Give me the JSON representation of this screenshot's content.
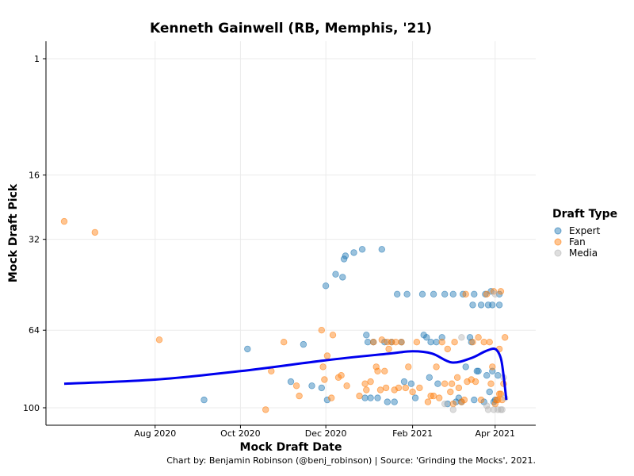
{
  "chart_data": {
    "type": "scatter",
    "title": "Kenneth Gainwell (RB, Memphis, '21)",
    "xlabel": "Mock Draft Date",
    "ylabel": "Mock Draft Pick",
    "caption": "Chart by: Benjamin Robinson (@benj_robinson) | Source: 'Grinding the Mocks', 2021.",
    "x_ticks": [
      "Aug 2020",
      "Oct 2020",
      "Dec 2020",
      "Feb 2021",
      "Apr 2021"
    ],
    "x_tick_dates": [
      "2020-08-01",
      "2020-10-01",
      "2020-12-01",
      "2021-02-01",
      "2021-04-01"
    ],
    "xlim": [
      "2020-05-15",
      "2021-04-30"
    ],
    "y_scale": "sqrt",
    "y_reversed": true,
    "y_ticks": [
      1,
      16,
      32,
      64,
      100
    ],
    "ylim": [
      1,
      105
    ],
    "grid": true,
    "legend": {
      "title": "Draft Type",
      "placement": "right",
      "entries": [
        {
          "name": "Expert",
          "color": "#1f77b4"
        },
        {
          "name": "Fan",
          "color": "#ff7f0e"
        },
        {
          "name": "Media",
          "color": "#b5b5b5"
        }
      ]
    },
    "series": [
      {
        "name": "Expert",
        "color": "#1f77b4",
        "points": [
          [
            "2020-09-05",
            96
          ],
          [
            "2020-10-06",
            72
          ],
          [
            "2020-11-06",
            87
          ],
          [
            "2020-11-15",
            70
          ],
          [
            "2020-11-21",
            89
          ],
          [
            "2020-11-28",
            90
          ],
          [
            "2020-12-01",
            47
          ],
          [
            "2020-12-02",
            96
          ],
          [
            "2020-12-08",
            43
          ],
          [
            "2020-12-13",
            44
          ],
          [
            "2020-12-14",
            38
          ],
          [
            "2020-12-15",
            37
          ],
          [
            "2020-12-21",
            36
          ],
          [
            "2020-12-27",
            35
          ],
          [
            "2020-12-29",
            95
          ],
          [
            "2020-12-30",
            66
          ],
          [
            "2020-12-31",
            69
          ],
          [
            "2021-01-02",
            95
          ],
          [
            "2021-01-04",
            69
          ],
          [
            "2021-01-07",
            95
          ],
          [
            "2021-01-10",
            35
          ],
          [
            "2021-01-12",
            69
          ],
          [
            "2021-01-14",
            97
          ],
          [
            "2021-01-17",
            69
          ],
          [
            "2021-01-19",
            97
          ],
          [
            "2021-01-21",
            50
          ],
          [
            "2021-01-24",
            69
          ],
          [
            "2021-01-26",
            87
          ],
          [
            "2021-01-28",
            50
          ],
          [
            "2021-01-31",
            88
          ],
          [
            "2021-02-03",
            95
          ],
          [
            "2021-02-08",
            50
          ],
          [
            "2021-02-09",
            66
          ],
          [
            "2021-02-11",
            67
          ],
          [
            "2021-02-13",
            85
          ],
          [
            "2021-02-14",
            69
          ],
          [
            "2021-02-16",
            50
          ],
          [
            "2021-02-18",
            69
          ],
          [
            "2021-02-19",
            88
          ],
          [
            "2021-02-22",
            67
          ],
          [
            "2021-02-24",
            50
          ],
          [
            "2021-02-26",
            98
          ],
          [
            "2021-03-02",
            50
          ],
          [
            "2021-03-04",
            97
          ],
          [
            "2021-03-06",
            95
          ],
          [
            "2021-03-08",
            97
          ],
          [
            "2021-03-09",
            50
          ],
          [
            "2021-03-11",
            80
          ],
          [
            "2021-03-14",
            67
          ],
          [
            "2021-03-15",
            69
          ],
          [
            "2021-03-16",
            54
          ],
          [
            "2021-03-17",
            96
          ],
          [
            "2021-03-17",
            50
          ],
          [
            "2021-03-19",
            82
          ],
          [
            "2021-03-20",
            82
          ],
          [
            "2021-03-22",
            54
          ],
          [
            "2021-03-24",
            97
          ],
          [
            "2021-03-25",
            50
          ],
          [
            "2021-03-26",
            84
          ],
          [
            "2021-03-27",
            54
          ],
          [
            "2021-03-28",
            92
          ],
          [
            "2021-03-29",
            49
          ],
          [
            "2021-03-30",
            82
          ],
          [
            "2021-03-30",
            54
          ],
          [
            "2021-03-31",
            97
          ],
          [
            "2021-04-01",
            96
          ],
          [
            "2021-04-03",
            84
          ],
          [
            "2021-04-04",
            54
          ],
          [
            "2021-04-04",
            50
          ]
        ]
      },
      {
        "name": "Fan",
        "color": "#ff7f0e",
        "points": [
          [
            "2020-05-28",
            27
          ],
          [
            "2020-06-19",
            30
          ],
          [
            "2020-08-04",
            68
          ],
          [
            "2020-10-19",
            101
          ],
          [
            "2020-10-23",
            82
          ],
          [
            "2020-11-01",
            69
          ],
          [
            "2020-11-10",
            89
          ],
          [
            "2020-11-12",
            94
          ],
          [
            "2020-11-28",
            64
          ],
          [
            "2020-11-29",
            80
          ],
          [
            "2020-11-30",
            86
          ],
          [
            "2020-12-02",
            75
          ],
          [
            "2020-12-05",
            95
          ],
          [
            "2020-12-06",
            66
          ],
          [
            "2020-12-10",
            85
          ],
          [
            "2020-12-12",
            84
          ],
          [
            "2020-12-16",
            89
          ],
          [
            "2020-12-25",
            94
          ],
          [
            "2020-12-29",
            88
          ],
          [
            "2020-12-30",
            91
          ],
          [
            "2021-01-02",
            87
          ],
          [
            "2021-01-04",
            69
          ],
          [
            "2021-01-06",
            80
          ],
          [
            "2021-01-07",
            82
          ],
          [
            "2021-01-09",
            91
          ],
          [
            "2021-01-10",
            68
          ],
          [
            "2021-01-12",
            82
          ],
          [
            "2021-01-13",
            90
          ],
          [
            "2021-01-14",
            69
          ],
          [
            "2021-01-15",
            72
          ],
          [
            "2021-01-17",
            69
          ],
          [
            "2021-01-19",
            91
          ],
          [
            "2021-01-20",
            69
          ],
          [
            "2021-01-22",
            90
          ],
          [
            "2021-01-24",
            69
          ],
          [
            "2021-01-27",
            90
          ],
          [
            "2021-01-29",
            80
          ],
          [
            "2021-02-01",
            92
          ],
          [
            "2021-02-04",
            69
          ],
          [
            "2021-02-06",
            90
          ],
          [
            "2021-02-12",
            97
          ],
          [
            "2021-02-14",
            94
          ],
          [
            "2021-02-16",
            94
          ],
          [
            "2021-02-18",
            80
          ],
          [
            "2021-02-20",
            95
          ],
          [
            "2021-02-22",
            69
          ],
          [
            "2021-02-24",
            88
          ],
          [
            "2021-02-26",
            72
          ],
          [
            "2021-02-28",
            92
          ],
          [
            "2021-03-01",
            88
          ],
          [
            "2021-03-02",
            98
          ],
          [
            "2021-03-03",
            69
          ],
          [
            "2021-03-05",
            85
          ],
          [
            "2021-03-06",
            90
          ],
          [
            "2021-03-08",
            97
          ],
          [
            "2021-03-10",
            96
          ],
          [
            "2021-03-11",
            50
          ],
          [
            "2021-03-12",
            87
          ],
          [
            "2021-03-15",
            86
          ],
          [
            "2021-03-16",
            69
          ],
          [
            "2021-03-18",
            87
          ],
          [
            "2021-03-20",
            67
          ],
          [
            "2021-03-22",
            96
          ],
          [
            "2021-03-24",
            69
          ],
          [
            "2021-03-26",
            50
          ],
          [
            "2021-03-28",
            69
          ],
          [
            "2021-03-29",
            88
          ],
          [
            "2021-03-30",
            80
          ],
          [
            "2021-03-31",
            49
          ],
          [
            "2021-04-01",
            98
          ],
          [
            "2021-04-02",
            96
          ],
          [
            "2021-04-03",
            96
          ],
          [
            "2021-04-04",
            93
          ],
          [
            "2021-04-04",
            72
          ],
          [
            "2021-04-05",
            49
          ],
          [
            "2021-04-05",
            93
          ],
          [
            "2021-04-06",
            96
          ],
          [
            "2021-04-07",
            88
          ],
          [
            "2021-04-08",
            67
          ]
        ]
      },
      {
        "name": "Media",
        "color": "#b5b5b5",
        "points": [
          [
            "2021-02-24",
            98
          ],
          [
            "2021-03-02",
            101
          ],
          [
            "2021-03-08",
            67
          ],
          [
            "2021-03-26",
            99
          ],
          [
            "2021-03-27",
            101
          ],
          [
            "2021-03-31",
            101
          ],
          [
            "2021-04-01",
            50
          ],
          [
            "2021-04-03",
            101
          ],
          [
            "2021-04-05",
            101
          ],
          [
            "2021-04-06",
            101
          ],
          [
            "2021-04-07",
            85
          ],
          [
            "2021-04-08",
            95
          ]
        ]
      }
    ],
    "trend": {
      "name": "",
      "color": "#0000ee",
      "points": [
        [
          "2020-05-28",
          88
        ],
        [
          "2020-08-01",
          86
        ],
        [
          "2020-10-01",
          82
        ],
        [
          "2020-12-01",
          77
        ],
        [
          "2021-01-15",
          74
        ],
        [
          "2021-02-01",
          73
        ],
        [
          "2021-02-15",
          74
        ],
        [
          "2021-03-01",
          78
        ],
        [
          "2021-03-15",
          76
        ],
        [
          "2021-03-25",
          73
        ],
        [
          "2021-04-01",
          72
        ],
        [
          "2021-04-05",
          76
        ],
        [
          "2021-04-07",
          84
        ],
        [
          "2021-04-09",
          96
        ]
      ]
    }
  }
}
